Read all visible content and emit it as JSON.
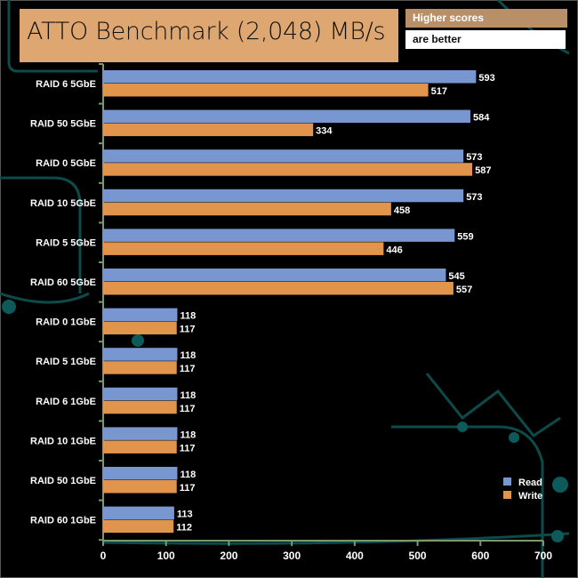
{
  "header": {
    "title": "ATTO Benchmark (2,048) MB/s",
    "badge_top": "Higher scores",
    "badge_bottom": "are better"
  },
  "chart_data": {
    "type": "bar",
    "orientation": "horizontal",
    "title": "ATTO Benchmark (2,048) MB/s",
    "categories": [
      "RAID 6 5GbE",
      "RAID 50 5GbE",
      "RAID 0 5GbE",
      "RAID 10 5GbE",
      "RAID 5 5GbE",
      "RAID 60 5GbE",
      "RAID 0 1GbE",
      "RAID 5 1GbE",
      "RAID 6 1GbE",
      "RAID 10 1GbE",
      "RAID 50 1GbE",
      "RAID 60 1GbE"
    ],
    "series": [
      {
        "name": "Read",
        "color": "#7896cf",
        "values": [
          593,
          584,
          573,
          573,
          559,
          545,
          118,
          118,
          118,
          118,
          118,
          113
        ]
      },
      {
        "name": "Write",
        "color": "#e0944c",
        "values": [
          517,
          334,
          587,
          458,
          446,
          557,
          117,
          117,
          117,
          117,
          117,
          112
        ]
      }
    ],
    "xlim": [
      0,
      700
    ],
    "xticks": [
      "0",
      "100",
      "200",
      "300",
      "400",
      "500",
      "600",
      "700"
    ],
    "legend": "bottom-right",
    "grid": false
  }
}
